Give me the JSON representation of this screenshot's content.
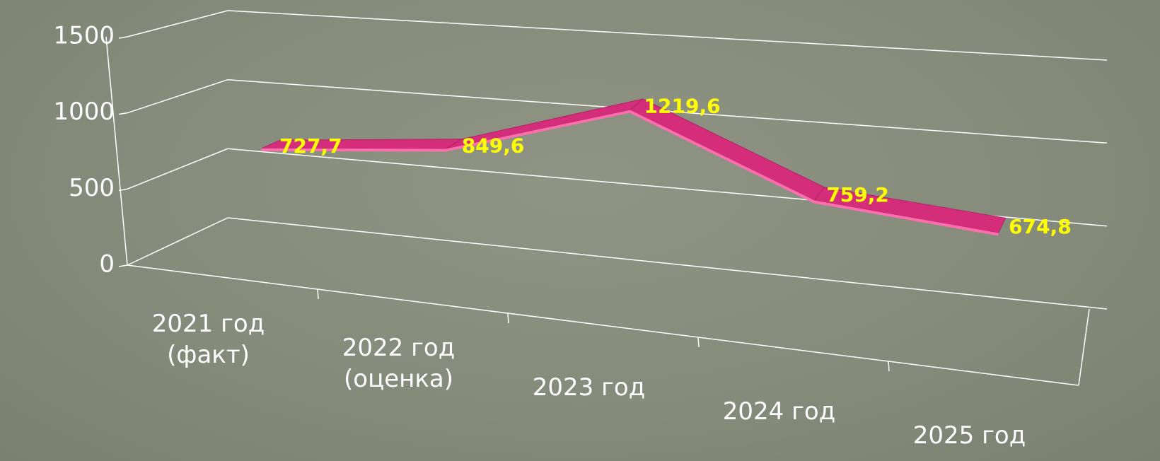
{
  "chart_data": {
    "type": "line3d",
    "categories": [
      "2021 год\n(факт)",
      "2022 год\n(оценка)",
      "2023 год",
      "2024 год",
      "2025 год"
    ],
    "series": [
      {
        "color": "#d42e7a",
        "values": [
          727.7,
          849.6,
          1219.6,
          759.2,
          674.8
        ],
        "value_labels": [
          "727,7",
          "849,6",
          "1219,6",
          "759,2",
          "674,8"
        ]
      }
    ],
    "ylim": [
      0,
      1500
    ],
    "yticks": [
      0,
      500,
      1000,
      1500
    ],
    "grid": true
  }
}
